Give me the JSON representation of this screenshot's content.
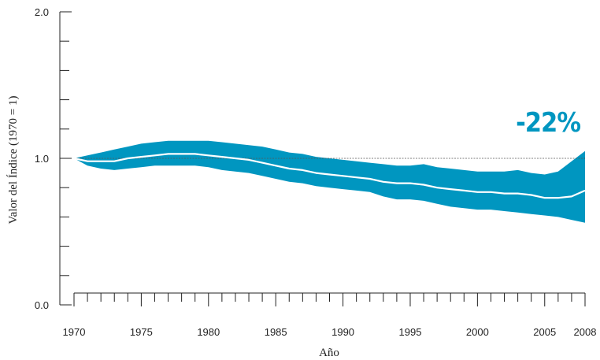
{
  "chart_data": {
    "type": "area",
    "xlabel": "Año",
    "ylabel": "Valor del Índice (1970 = 1)",
    "ylim": [
      0,
      2
    ],
    "xlim": [
      1970,
      2008
    ],
    "yticks_labeled": [
      {
        "value": 0,
        "label": "0.0"
      },
      {
        "value": 1,
        "label": "1.0"
      },
      {
        "value": 2,
        "label": "2.0"
      }
    ],
    "yticks_minor": [
      0.2,
      0.4,
      0.6,
      0.8,
      1.2,
      1.4,
      1.6,
      1.8
    ],
    "xticks_labeled": [
      {
        "value": 1970,
        "label": "1970"
      },
      {
        "value": 1975,
        "label": "1975"
      },
      {
        "value": 1980,
        "label": "1980"
      },
      {
        "value": 1985,
        "label": "1985"
      },
      {
        "value": 1990,
        "label": "1990"
      },
      {
        "value": 1995,
        "label": "1995"
      },
      {
        "value": 2000,
        "label": "2000"
      },
      {
        "value": 2005,
        "label": "2005"
      },
      {
        "value": 2008,
        "label": "2008"
      }
    ],
    "reference_line": 1.0,
    "annotation": "-22%",
    "colors": {
      "band": "#0096C0",
      "line": "#ffffff",
      "annotation": "#0096C0",
      "reference": "#555555",
      "axis": "#222222"
    },
    "x": [
      1970,
      1971,
      1972,
      1973,
      1974,
      1975,
      1976,
      1977,
      1978,
      1979,
      1980,
      1981,
      1982,
      1983,
      1984,
      1985,
      1986,
      1987,
      1988,
      1989,
      1990,
      1991,
      1992,
      1993,
      1994,
      1995,
      1996,
      1997,
      1998,
      1999,
      2000,
      2001,
      2002,
      2003,
      2004,
      2005,
      2006,
      2007,
      2008
    ],
    "index": [
      1.0,
      0.98,
      0.98,
      0.98,
      1.0,
      1.01,
      1.02,
      1.03,
      1.03,
      1.03,
      1.02,
      1.01,
      1.0,
      0.99,
      0.97,
      0.95,
      0.93,
      0.92,
      0.9,
      0.89,
      0.88,
      0.87,
      0.86,
      0.84,
      0.83,
      0.83,
      0.82,
      0.8,
      0.79,
      0.78,
      0.77,
      0.77,
      0.76,
      0.76,
      0.75,
      0.73,
      0.73,
      0.74,
      0.78
    ],
    "upper": [
      1.0,
      1.02,
      1.04,
      1.06,
      1.08,
      1.1,
      1.11,
      1.12,
      1.12,
      1.12,
      1.12,
      1.11,
      1.1,
      1.09,
      1.08,
      1.06,
      1.04,
      1.03,
      1.01,
      1.0,
      0.99,
      0.98,
      0.97,
      0.96,
      0.95,
      0.95,
      0.96,
      0.94,
      0.93,
      0.92,
      0.91,
      0.91,
      0.91,
      0.92,
      0.9,
      0.89,
      0.91,
      0.98,
      1.05
    ],
    "lower": [
      1.0,
      0.95,
      0.93,
      0.92,
      0.93,
      0.94,
      0.95,
      0.95,
      0.95,
      0.95,
      0.94,
      0.92,
      0.91,
      0.9,
      0.88,
      0.86,
      0.84,
      0.83,
      0.81,
      0.8,
      0.79,
      0.78,
      0.77,
      0.74,
      0.72,
      0.72,
      0.71,
      0.69,
      0.67,
      0.66,
      0.65,
      0.65,
      0.64,
      0.63,
      0.62,
      0.61,
      0.6,
      0.58,
      0.56
    ]
  }
}
